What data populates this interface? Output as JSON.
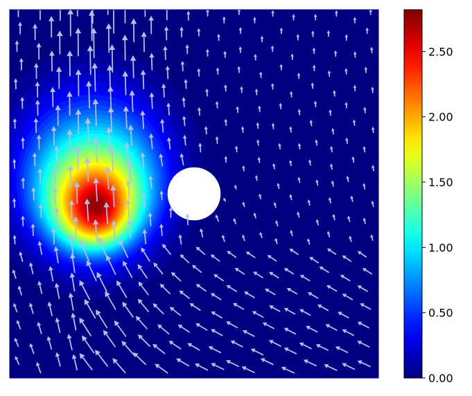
{
  "chart_data": {
    "type": "heatmap",
    "title": "",
    "xlabel": "",
    "ylabel": "",
    "xlim": [
      0,
      1
    ],
    "ylim": [
      0,
      1
    ],
    "x_ticks_visible": false,
    "y_ticks_visible": false,
    "grid": false,
    "colormap": "jet",
    "colorbar": {
      "placement": "right",
      "range": [
        0,
        2.82
      ],
      "ticks": [
        0.0,
        0.5,
        1.0,
        1.5,
        2.0,
        2.5
      ],
      "tick_labels": [
        "0.00",
        "0.50",
        "1.00",
        "1.50",
        "2.00",
        "2.50"
      ]
    },
    "field": {
      "description_values": "scalar concentration field with peak near the left",
      "peak": {
        "x": 0.235,
        "y": 0.47,
        "value": 2.82
      }
    },
    "obstacle": {
      "shape": "circle",
      "center": [
        0.5,
        0.5
      ],
      "radius": 0.072,
      "color": "#ffffff"
    },
    "vector_field": {
      "type": "quiver",
      "arrow_color": "#b4bee6",
      "description": "velocity arrows; strong upward flow on the left, flow around the obstacle"
    },
    "colors": {
      "background_field": "#00008a",
      "arrow": "#b4bee6",
      "obstacle": "#ffffff"
    }
  }
}
